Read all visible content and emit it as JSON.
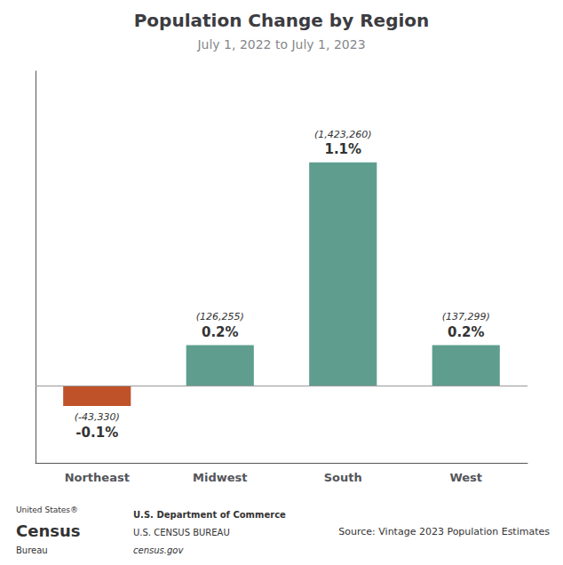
{
  "chart_data": {
    "type": "bar",
    "title": "Population Change by Region",
    "subtitle": "July 1, 2022 to July 1, 2023",
    "categories": [
      "Northeast",
      "Midwest",
      "South",
      "West"
    ],
    "values": [
      -0.1,
      0.2,
      1.1,
      0.2
    ],
    "value_labels": [
      "-0.1%",
      "0.2%",
      "1.1%",
      "0.2%"
    ],
    "raw_labels": [
      "(-43,330)",
      "(126,255)",
      "(1,423,260)",
      "(137,299)"
    ],
    "colors": [
      "#c0522a",
      "#5f9e8f",
      "#5f9e8f",
      "#5f9e8f"
    ],
    "ylim": [
      -0.38,
      1.55
    ],
    "data_labels": true,
    "grid": false,
    "tick_labels": "x",
    "logo": [
      "United States®",
      "Census",
      "Bureau"
    ],
    "credits": [
      "U.S. Department of Commerce",
      "U.S. CENSUS BUREAU",
      "census.gov"
    ],
    "source": "Source: Vintage 2023 Population Estimates"
  }
}
